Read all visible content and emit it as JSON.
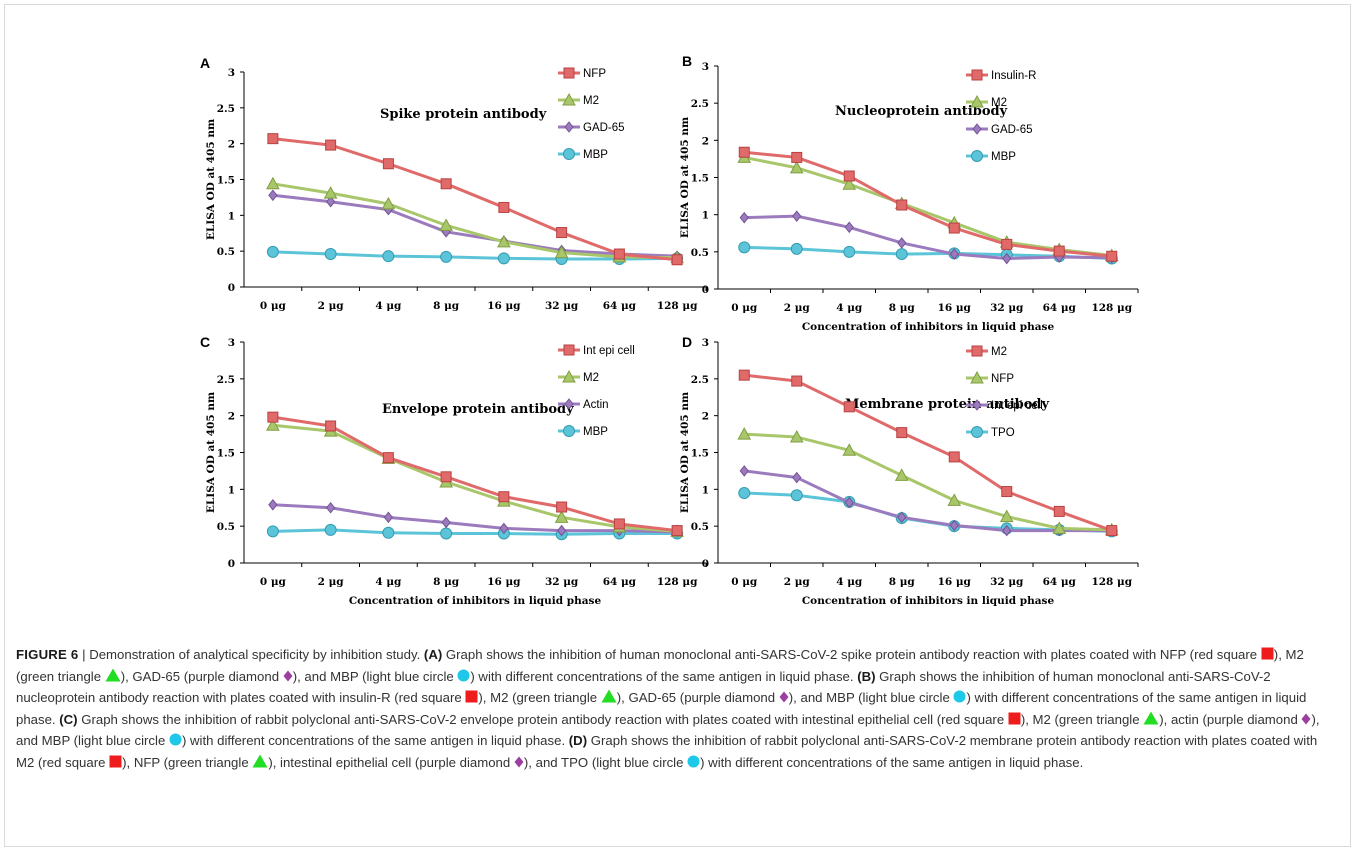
{
  "chart_data": [
    {
      "type": "line",
      "panel": "A",
      "title": "Spike protein antibody",
      "xlabel": "",
      "ylabel": "ELISA OD at 405 nm",
      "categories": [
        "0 μg",
        "2 μg",
        "4 μg",
        "8 μg",
        "16 μg",
        "32 μg",
        "64 μg",
        "128 μg"
      ],
      "ylim": [
        0,
        3
      ],
      "yticks": [
        "0",
        "0.5",
        "1",
        "1.5",
        "2",
        "2.5",
        "3"
      ],
      "legend_position": "top-right",
      "series": [
        {
          "name": "NFP",
          "marker": "square",
          "color": "#e06a6a",
          "values": [
            2.07,
            1.98,
            1.72,
            1.44,
            1.11,
            0.76,
            0.46,
            0.38
          ]
        },
        {
          "name": "M2",
          "marker": "triangle",
          "color": "#a8c66a",
          "values": [
            1.44,
            1.31,
            1.16,
            0.86,
            0.63,
            0.48,
            0.42,
            0.41
          ]
        },
        {
          "name": "GAD-65",
          "marker": "diamond",
          "color": "#9b7bbd",
          "values": [
            1.28,
            1.19,
            1.08,
            0.77,
            0.64,
            0.51,
            0.46,
            0.43
          ]
        },
        {
          "name": "MBP",
          "marker": "circle",
          "color": "#5cc4d8",
          "values": [
            0.49,
            0.46,
            0.43,
            0.42,
            0.4,
            0.39,
            0.39,
            0.4
          ]
        }
      ]
    },
    {
      "type": "line",
      "panel": "B",
      "title": "Nucleoprotein antibody",
      "xlabel": "Concentration of inhibitors in liquid phase",
      "ylabel": "ELISA OD at 405 nm",
      "categories": [
        "0 μg",
        "2 μg",
        "4 μg",
        "8 μg",
        "16 μg",
        "32 μg",
        "64 μg",
        "128 μg"
      ],
      "ylim": [
        0,
        3
      ],
      "yticks": [
        "0",
        "0.5",
        "1",
        "1.5",
        "2",
        "2.5",
        "3"
      ],
      "legend_position": "top-right",
      "series": [
        {
          "name": "Insulin-R",
          "marker": "square",
          "color": "#e06a6a",
          "values": [
            1.84,
            1.77,
            1.52,
            1.13,
            0.82,
            0.6,
            0.51,
            0.44
          ]
        },
        {
          "name": "M2",
          "marker": "triangle",
          "color": "#a8c66a",
          "values": [
            1.77,
            1.63,
            1.41,
            1.15,
            0.89,
            0.63,
            0.53,
            0.45
          ]
        },
        {
          "name": "GAD-65",
          "marker": "diamond",
          "color": "#9b7bbd",
          "values": [
            0.96,
            0.98,
            0.83,
            0.62,
            0.47,
            0.41,
            0.43,
            0.42
          ]
        },
        {
          "name": "MBP",
          "marker": "circle",
          "color": "#5cc4d8",
          "values": [
            0.56,
            0.54,
            0.5,
            0.47,
            0.48,
            0.46,
            0.44,
            0.41
          ]
        }
      ]
    },
    {
      "type": "line",
      "panel": "C",
      "title": "Envelope protein antibody",
      "xlabel": "Concentration of inhibitors in liquid phase",
      "ylabel": "ELISA OD at 405 nm",
      "categories": [
        "0 μg",
        "2 μg",
        "4 μg",
        "8 μg",
        "16 μg",
        "32 μg",
        "64 μg",
        "128 μg"
      ],
      "ylim": [
        0,
        3
      ],
      "yticks": [
        "0",
        "0.5",
        "1",
        "1.5",
        "2",
        "2.5",
        "3"
      ],
      "legend_position": "top-right",
      "series": [
        {
          "name": "Int epi cell",
          "marker": "square",
          "color": "#e06a6a",
          "values": [
            1.98,
            1.86,
            1.43,
            1.17,
            0.9,
            0.76,
            0.53,
            0.44
          ]
        },
        {
          "name": "M2",
          "marker": "triangle",
          "color": "#a8c66a",
          "values": [
            1.87,
            1.79,
            1.42,
            1.1,
            0.84,
            0.62,
            0.49,
            0.43
          ]
        },
        {
          "name": "Actin",
          "marker": "diamond",
          "color": "#9b7bbd",
          "values": [
            0.79,
            0.75,
            0.62,
            0.55,
            0.47,
            0.44,
            0.44,
            0.42
          ]
        },
        {
          "name": "MBP",
          "marker": "circle",
          "color": "#5cc4d8",
          "values": [
            0.43,
            0.45,
            0.41,
            0.4,
            0.4,
            0.39,
            0.4,
            0.4
          ]
        }
      ]
    },
    {
      "type": "line",
      "panel": "D",
      "title": "Membrane protein antibody",
      "xlabel": "Concentration of inhibitors in liquid phase",
      "ylabel": "ELISA OD at 405 nm",
      "categories": [
        "0 μg",
        "2 μg",
        "4 μg",
        "8 μg",
        "16 μg",
        "32 μg",
        "64 μg",
        "128 μg"
      ],
      "ylim": [
        0,
        3
      ],
      "yticks": [
        "0",
        "0.5",
        "1",
        "1.5",
        "2",
        "2.5",
        "3"
      ],
      "legend_position": "top-right",
      "series": [
        {
          "name": "M2",
          "marker": "square",
          "color": "#e06a6a",
          "values": [
            2.55,
            2.47,
            2.12,
            1.77,
            1.44,
            0.97,
            0.7,
            0.44
          ]
        },
        {
          "name": "NFP",
          "marker": "triangle",
          "color": "#a8c66a",
          "values": [
            1.75,
            1.71,
            1.53,
            1.19,
            0.85,
            0.63,
            0.47,
            0.45
          ]
        },
        {
          "name": "Int epi cell",
          "marker": "diamond",
          "color": "#9b7bbd",
          "values": [
            1.25,
            1.16,
            0.82,
            0.62,
            0.51,
            0.44,
            0.44,
            0.44
          ]
        },
        {
          "name": "TPO",
          "marker": "circle",
          "color": "#5cc4d8",
          "values": [
            0.95,
            0.92,
            0.83,
            0.61,
            0.5,
            0.47,
            0.45,
            0.43
          ]
        }
      ]
    }
  ],
  "caption": {
    "label": "FIGURE 6",
    "separator": " | ",
    "intro": "Demonstration of analytical specificity by inhibition study. ",
    "A_label": "(A)",
    "A_text1": " Graph shows the inhibition of human monoclonal anti-SARS-CoV-2 spike protein antibody reaction with plates coated with NFP (red square ",
    "A_text2": "), M2 (green triangle ",
    "A_text3": "), GAD-65 (purple diamond ",
    "A_text4": "), and MBP (light blue circle ",
    "A_text5": ") with different concentrations of the same antigen in liquid phase. ",
    "B_label": "(B)",
    "B_text1": " Graph shows the inhibition of human monoclonal anti-SARS-CoV-2 nucleoprotein antibody reaction with plates coated with insulin-R (red square ",
    "B_text2": "), M2 (green triangle ",
    "B_text3": "), GAD-65 (purple diamond ",
    "B_text4": "), and MBP (light blue circle ",
    "B_text5": ") with different concentrations of the same antigen in liquid phase. ",
    "C_label": "(C)",
    "C_text1": " Graph shows the inhibition of rabbit polyclonal anti-SARS-CoV-2 envelope protein antibody reaction with plates coated with intestinal epithelial cell (red square ",
    "C_text2": "), M2 (green triangle ",
    "C_text3": "), actin (purple diamond ",
    "C_text4": "), and MBP (light blue circle ",
    "C_text5": ") with different concentrations of the same antigen in liquid phase. ",
    "D_label": "(D)",
    "D_text1": " Graph shows the inhibition of rabbit polyclonal anti-SARS-CoV-2 membrane protein antibody reaction with plates coated with M2 (red square ",
    "D_text2": "), NFP (green triangle ",
    "D_text3": "), intestinal epithelial cell (purple diamond ",
    "D_text4": "), and TPO (light blue circle ",
    "D_text5": ") with different concentrations of the same antigen in liquid phase.",
    "colors": {
      "red": "#ee1c1c",
      "green": "#22dd22",
      "purple": "#9b3fa0",
      "cyan": "#1ec8e8"
    }
  }
}
